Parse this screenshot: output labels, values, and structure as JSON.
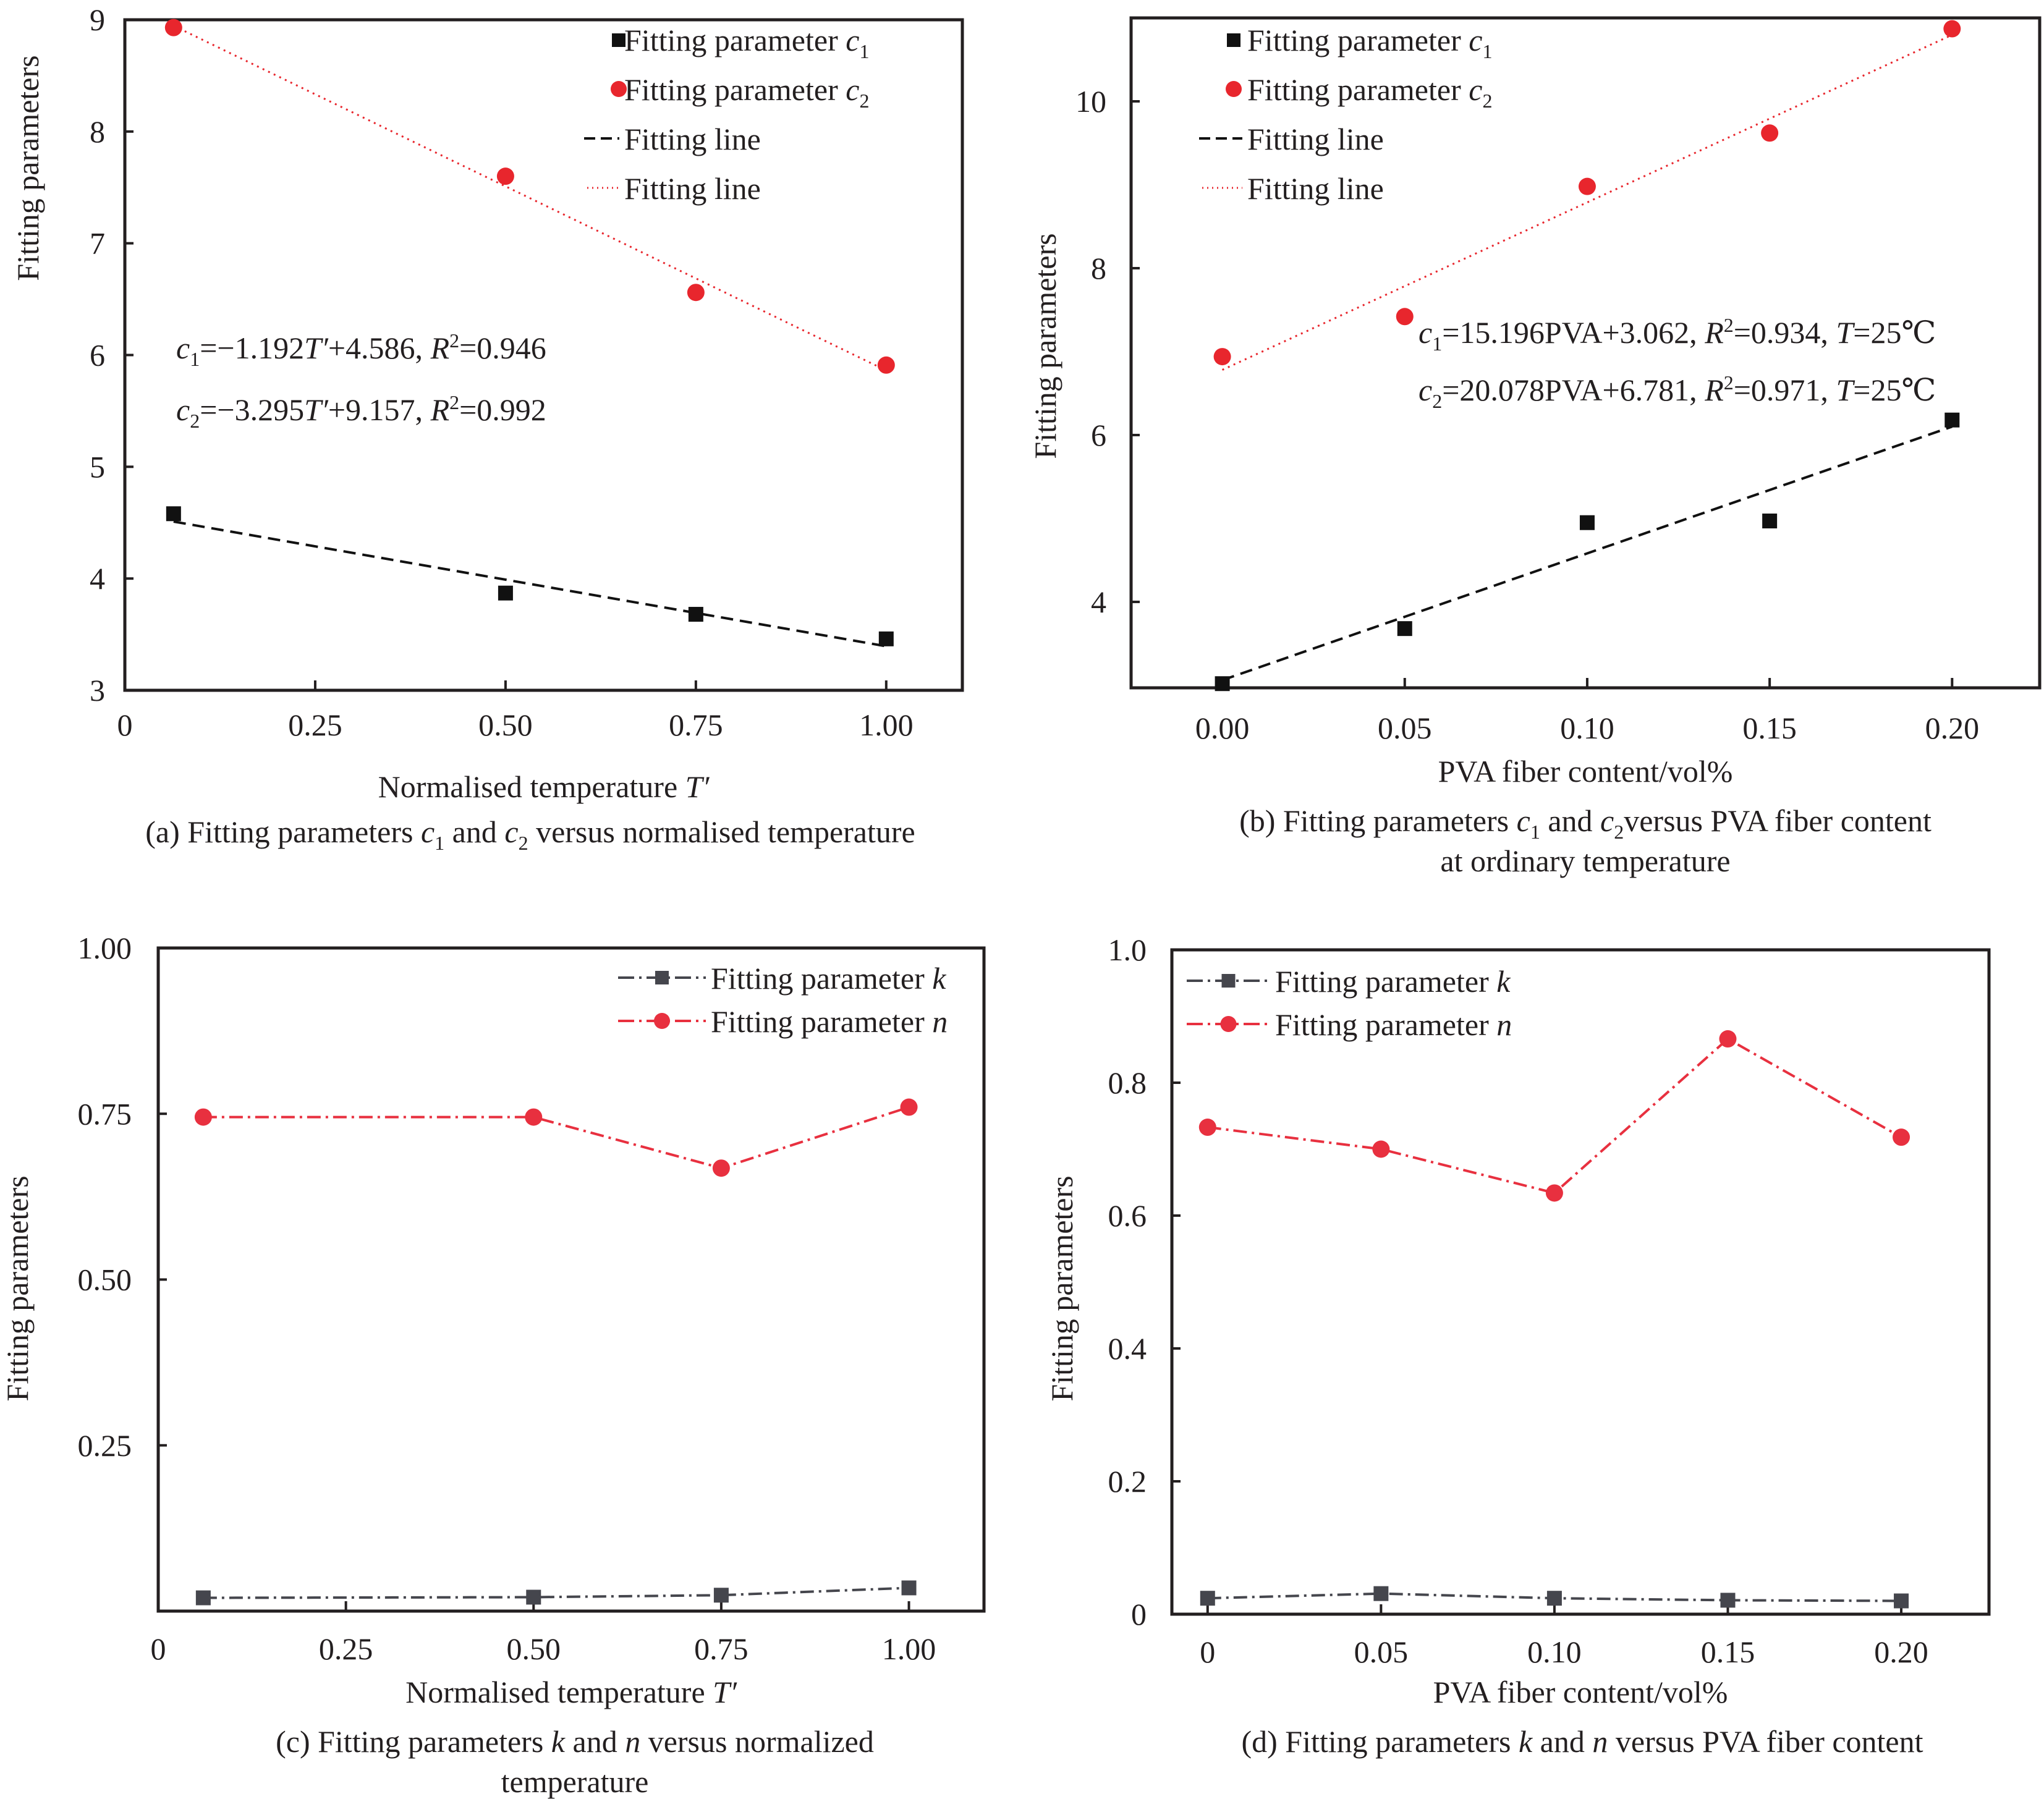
{
  "figure": {
    "panels": [
      {
        "id": "a",
        "caption_parts": [
          {
            "t": "(a) Fitting parameters "
          },
          {
            "t": "c",
            "i": true
          },
          {
            "t": "1",
            "sub": true
          },
          {
            "t": " and "
          },
          {
            "t": "c",
            "i": true
          },
          {
            "t": "2",
            "sub": true
          },
          {
            "t": " versus normalised temperature"
          }
        ],
        "caption_lines": 1
      },
      {
        "id": "b",
        "caption_parts": [
          {
            "t": "(b) Fitting parameters "
          },
          {
            "t": "c",
            "i": true
          },
          {
            "t": "1",
            "sub": true
          },
          {
            "t": " and "
          },
          {
            "t": "c",
            "i": true
          },
          {
            "t": "2",
            "sub": true
          },
          {
            "t": "versus PVA fiber content"
          }
        ],
        "caption_line2": "at ordinary temperature"
      },
      {
        "id": "c",
        "caption_parts": [
          {
            "t": "(c) Fitting parameters "
          },
          {
            "t": "k",
            "i": true
          },
          {
            "t": " and "
          },
          {
            "t": "n",
            "i": true
          },
          {
            "t": " versus normalized"
          }
        ],
        "caption_line2": "temperature"
      },
      {
        "id": "d",
        "caption_parts": [
          {
            "t": "(d) Fitting parameters "
          },
          {
            "t": "k",
            "i": true
          },
          {
            "t": " and "
          },
          {
            "t": "n",
            "i": true
          },
          {
            "t": " versus PVA fiber content"
          }
        ]
      }
    ]
  },
  "colors": {
    "black_series": "#111111",
    "red_series": "#e8262d",
    "k_series": "#45464d",
    "n_series": "#e8303f",
    "axis": "#231f20"
  },
  "chart_data": [
    {
      "panel": "a",
      "type": "scatter",
      "title": "(a) Fitting parameters c1 and c2 versus normalised temperature",
      "xlabel": "Normalised temperature T′",
      "ylabel": "Fitting parameters",
      "xlim": [
        0,
        1.1
      ],
      "ylim": [
        3,
        9
      ],
      "xticks": [
        0,
        0.25,
        0.5,
        0.75,
        1.0
      ],
      "xtick_labels": [
        "0",
        "0.25",
        "0.50",
        "0.75",
        "1.00"
      ],
      "yticks": [
        3,
        4,
        5,
        6,
        7,
        8,
        9
      ],
      "ytick_labels": [
        "3",
        "4",
        "5",
        "6",
        "7",
        "8",
        "9"
      ],
      "grid": false,
      "legend_position": "top-right",
      "series": [
        {
          "name": "Fitting parameter c1",
          "marker": "square",
          "color": "#111111",
          "x": [
            0.064,
            0.5,
            0.75,
            1.0
          ],
          "y": [
            4.58,
            3.87,
            3.68,
            3.46
          ]
        },
        {
          "name": "Fitting parameter c2",
          "marker": "circle",
          "color": "#e8262d",
          "x": [
            0.064,
            0.5,
            0.75,
            1.0
          ],
          "y": [
            8.93,
            7.6,
            6.56,
            5.91
          ]
        }
      ],
      "fit_lines": [
        {
          "name": "Fitting line",
          "style": "dashed",
          "color": "#111111",
          "slope": -1.192,
          "intercept": 4.586,
          "x": [
            0.064,
            1.0
          ]
        },
        {
          "name": "Fitting line",
          "style": "dotted",
          "color": "#e8262d",
          "slope": -3.295,
          "intercept": 9.157,
          "x": [
            0.064,
            1.0
          ]
        }
      ],
      "legend": [
        {
          "label_main": "Fitting parameter ",
          "label_var": "c",
          "label_sub": "1",
          "kind": "square"
        },
        {
          "label_main": "Fitting parameter ",
          "label_var": "c",
          "label_sub": "2",
          "kind": "circle"
        },
        {
          "label_main": "Fitting line",
          "kind": "dashed"
        },
        {
          "label_main": "Fitting line",
          "kind": "dotted"
        }
      ],
      "annotations": [
        {
          "color": "black",
          "parts": [
            {
              "t": "c",
              "i": true
            },
            {
              "t": "1",
              "sub": true
            },
            {
              "t": "=−1.192"
            },
            {
              "t": "T′",
              "i": true
            },
            {
              "t": "+4.586, "
            },
            {
              "t": "R",
              "i": true
            },
            {
              "t": "2",
              "sup": true
            },
            {
              "t": "=0.946"
            }
          ]
        },
        {
          "color": "red",
          "parts": [
            {
              "t": "c",
              "i": true
            },
            {
              "t": "2",
              "sub": true
            },
            {
              "t": "=−3.295"
            },
            {
              "t": "T′",
              "i": true
            },
            {
              "t": "+9.157, "
            },
            {
              "t": "R",
              "i": true
            },
            {
              "t": "2",
              "sup": true
            },
            {
              "t": "=0.992"
            }
          ]
        }
      ]
    },
    {
      "panel": "b",
      "type": "scatter",
      "title": "(b) Fitting parameters c1 and c2 versus PVA fiber content at ordinary temperature",
      "xlabel": "PVA fiber content/vol%",
      "ylabel": "Fitting parameters",
      "xlim": [
        -0.025,
        0.224
      ],
      "ylim": [
        2.97,
        11.0
      ],
      "xticks": [
        0,
        0.05,
        0.1,
        0.15,
        0.2
      ],
      "xtick_labels": [
        "0.00",
        "0.05",
        "0.10",
        "0.15",
        "0.20"
      ],
      "yticks": [
        4,
        6,
        8,
        10
      ],
      "ytick_labels": [
        "4",
        "6",
        "8",
        "10"
      ],
      "grid": false,
      "legend_position": "top-left",
      "series": [
        {
          "name": "Fitting parameter c1",
          "marker": "square",
          "color": "#111111",
          "x": [
            0,
            0.05,
            0.1,
            0.15,
            0.2
          ],
          "y": [
            3.02,
            3.68,
            4.95,
            4.97,
            6.18
          ]
        },
        {
          "name": "Fitting parameter c2",
          "marker": "circle",
          "color": "#e8262d",
          "x": [
            0,
            0.05,
            0.1,
            0.15,
            0.2
          ],
          "y": [
            6.94,
            7.42,
            8.98,
            9.62,
            10.87
          ]
        }
      ],
      "fit_lines": [
        {
          "name": "Fitting line",
          "style": "dashed",
          "color": "#111111",
          "slope": 15.196,
          "intercept": 3.062,
          "x": [
            0,
            0.2
          ]
        },
        {
          "name": "Fitting line",
          "style": "dotted",
          "color": "#e8262d",
          "slope": 20.078,
          "intercept": 6.781,
          "x": [
            0,
            0.2
          ]
        }
      ],
      "legend": [
        {
          "label_main": "Fitting parameter ",
          "label_var": "c",
          "label_sub": "1",
          "kind": "square"
        },
        {
          "label_main": "Fitting parameter ",
          "label_var": "c",
          "label_sub": "2",
          "kind": "circle"
        },
        {
          "label_main": "Fitting line",
          "kind": "dashed"
        },
        {
          "label_main": "Fitting line",
          "kind": "dotted"
        }
      ],
      "annotations": [
        {
          "color": "black",
          "parts": [
            {
              "t": "c",
              "i": true
            },
            {
              "t": "1",
              "sub": true
            },
            {
              "t": "=15.196PVA+3.062, "
            },
            {
              "t": "R",
              "i": true
            },
            {
              "t": "2",
              "sup": true
            },
            {
              "t": "=0.934, "
            },
            {
              "t": "T",
              "i": true
            },
            {
              "t": "=25℃"
            }
          ]
        },
        {
          "color": "red",
          "parts": [
            {
              "t": "c",
              "i": true
            },
            {
              "t": "2",
              "sub": true
            },
            {
              "t": "=20.078PVA+6.781, "
            },
            {
              "t": "R",
              "i": true
            },
            {
              "t": "2",
              "sup": true
            },
            {
              "t": "=0.971, "
            },
            {
              "t": "T",
              "i": true
            },
            {
              "t": "=25℃"
            }
          ]
        }
      ]
    },
    {
      "panel": "c",
      "type": "line",
      "title": "(c) Fitting parameters k and n versus normalized temperature",
      "xlabel": "Normalised temperature T′",
      "ylabel": "Fitting parameters",
      "xlim": [
        0,
        1.1
      ],
      "ylim": [
        0,
        1.0
      ],
      "xticks": [
        0,
        0.25,
        0.5,
        0.75,
        1.0
      ],
      "xtick_labels": [
        "0",
        "0.25",
        "0.50",
        "0.75",
        "1.00"
      ],
      "yticks": [
        0.25,
        0.5,
        0.75,
        1.0
      ],
      "ytick_labels": [
        "0.25",
        "0.50",
        "0.75",
        "1.00"
      ],
      "grid": false,
      "legend_position": "top-right",
      "series": [
        {
          "name": "Fitting parameter k",
          "marker": "square",
          "style": "dash-dot",
          "color": "#45464d",
          "x": [
            0.06,
            0.5,
            0.75,
            1.0
          ],
          "y": [
            0.02,
            0.021,
            0.024,
            0.035
          ]
        },
        {
          "name": "Fitting parameter n",
          "marker": "circle",
          "style": "dash-dot",
          "color": "#e8303f",
          "x": [
            0.06,
            0.5,
            0.75,
            1.0
          ],
          "y": [
            0.745,
            0.745,
            0.668,
            0.76
          ]
        }
      ],
      "legend": [
        {
          "label_main": "Fitting parameter ",
          "label_var": "k",
          "kind": "k"
        },
        {
          "label_main": "Fitting parameter ",
          "label_var": "n",
          "kind": "n"
        }
      ]
    },
    {
      "panel": "d",
      "type": "line",
      "title": "(d) Fitting parameters k and n versus PVA fiber content",
      "xlabel": "PVA fiber content/vol%",
      "ylabel": "Fitting parameters",
      "xlim": [
        -0.0103,
        0.2253
      ],
      "ylim": [
        0,
        1.0
      ],
      "xticks": [
        0,
        0.05,
        0.1,
        0.15,
        0.2
      ],
      "xtick_labels": [
        "0",
        "0.05",
        "0.10",
        "0.15",
        "0.20"
      ],
      "yticks": [
        0,
        0.2,
        0.4,
        0.6,
        0.8,
        1.0
      ],
      "ytick_labels": [
        "0",
        "0.2",
        "0.4",
        "0.6",
        "0.8",
        "1.0"
      ],
      "grid": false,
      "legend_position": "top-left",
      "series": [
        {
          "name": "Fitting parameter k",
          "marker": "square",
          "style": "dash-dot",
          "color": "#45464d",
          "x": [
            0,
            0.05,
            0.1,
            0.15,
            0.2
          ],
          "y": [
            0.024,
            0.031,
            0.024,
            0.021,
            0.02
          ]
        },
        {
          "name": "Fitting parameter n",
          "marker": "circle",
          "style": "dash-dot",
          "color": "#e8303f",
          "x": [
            0,
            0.05,
            0.1,
            0.15,
            0.2
          ],
          "y": [
            0.733,
            0.7,
            0.634,
            0.866,
            0.718
          ]
        }
      ],
      "legend": [
        {
          "label_main": "Fitting parameter ",
          "label_var": "k",
          "kind": "k"
        },
        {
          "label_main": "Fitting parameter ",
          "label_var": "n",
          "kind": "n"
        }
      ]
    }
  ]
}
